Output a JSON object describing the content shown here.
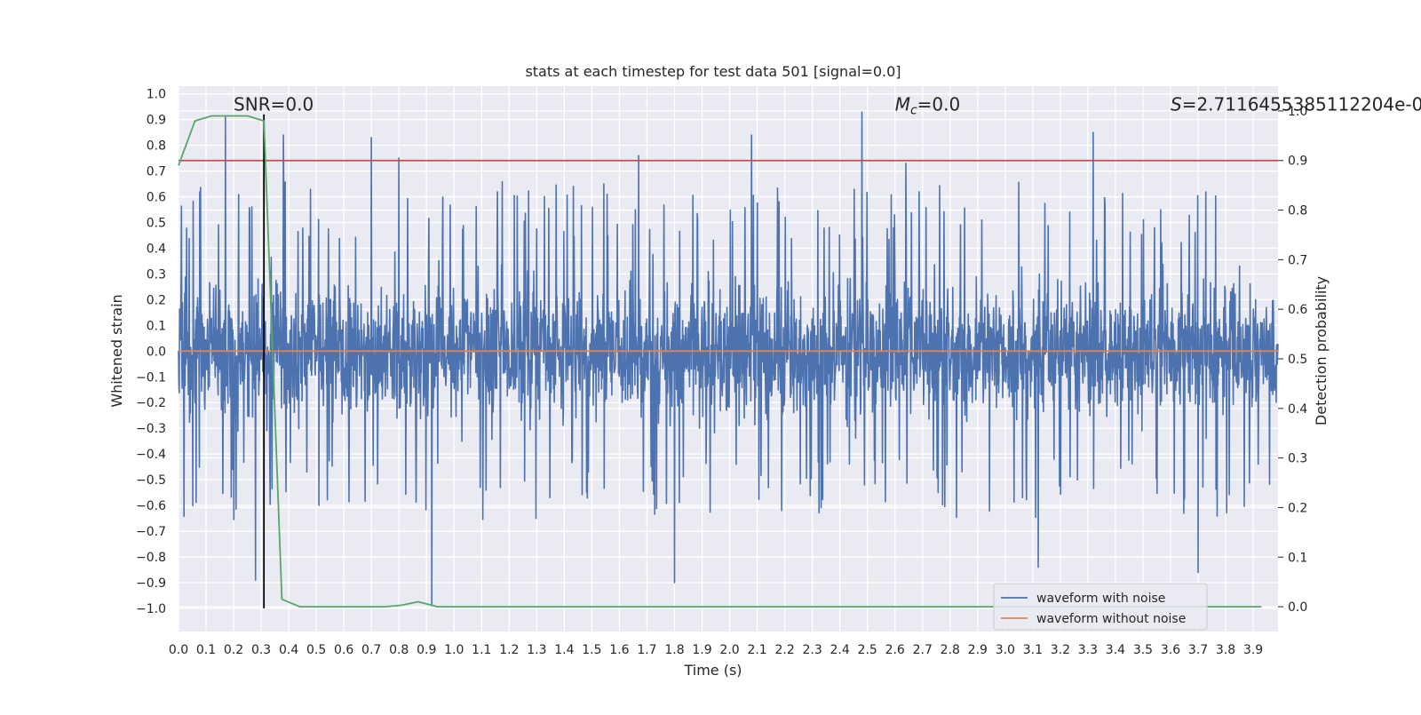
{
  "chart_data": {
    "type": "line",
    "title": "stats at each timestep for test data 501 [signal=0.0]",
    "xlabel": "Time (s)",
    "ylabel": "Whitened strain",
    "y2label": "Detection probability",
    "xlim": [
      0.0,
      3.99
    ],
    "ylim": [
      -1.09,
      1.03
    ],
    "y2lim": [
      -0.05,
      1.05
    ],
    "x_ticks": [
      "0.0",
      "0.1",
      "0.2",
      "0.3",
      "0.4",
      "0.5",
      "0.6",
      "0.7",
      "0.8",
      "0.9",
      "1.0",
      "1.1",
      "1.2",
      "1.3",
      "1.4",
      "1.5",
      "1.6",
      "1.7",
      "1.8",
      "1.9",
      "2.0",
      "2.1",
      "2.2",
      "2.3",
      "2.4",
      "2.5",
      "2.6",
      "2.7",
      "2.8",
      "2.9",
      "3.0",
      "3.1",
      "3.2",
      "3.3",
      "3.4",
      "3.5",
      "3.6",
      "3.7",
      "3.8",
      "3.9"
    ],
    "y_ticks": [
      "1.0",
      "0.9",
      "0.8",
      "0.7",
      "0.6",
      "0.5",
      "0.4",
      "0.3",
      "0.2",
      "0.1",
      "0.0",
      "−0.1",
      "−0.2",
      "−0.3",
      "−0.4",
      "−0.5",
      "−0.6",
      "−0.7",
      "−0.8",
      "−0.9",
      "−1.0"
    ],
    "y2_ticks": [
      "1.0",
      "0.9",
      "0.8",
      "0.7",
      "0.6",
      "0.5",
      "0.4",
      "0.3",
      "0.2",
      "0.1",
      "0.0"
    ],
    "grid": true,
    "legend_position": "lower-right",
    "series": [
      {
        "name": "waveform with noise",
        "color": "#4c72b0",
        "axis": "left",
        "style": "dense noise, mostly between -0.5 and 0.6, spikes to about ±0.9",
        "x_range": [
          0.0,
          3.99
        ],
        "peaks": [
          {
            "x": 0.17,
            "y": 0.91
          },
          {
            "x": 0.38,
            "y": 0.84
          },
          {
            "x": 0.7,
            "y": 0.83
          },
          {
            "x": 0.8,
            "y": 0.75
          },
          {
            "x": 1.67,
            "y": 0.76
          },
          {
            "x": 2.08,
            "y": 0.84
          },
          {
            "x": 2.48,
            "y": 0.93
          },
          {
            "x": 2.64,
            "y": 0.73
          },
          {
            "x": 3.32,
            "y": 0.85
          },
          {
            "x": 0.28,
            "y": -0.89
          },
          {
            "x": 0.92,
            "y": -0.99
          },
          {
            "x": 1.8,
            "y": -0.9
          },
          {
            "x": 3.12,
            "y": -0.84
          },
          {
            "x": 3.7,
            "y": -0.86
          }
        ]
      },
      {
        "name": "waveform without noise",
        "color": "#dd8452",
        "axis": "left",
        "x": [
          0.0,
          3.99
        ],
        "y": [
          0.0,
          0.0
        ]
      },
      {
        "name": "",
        "color": "#55a868",
        "axis": "right",
        "x": [
          0.0,
          0.06,
          0.12,
          0.19,
          0.25,
          0.31,
          0.375,
          0.44,
          0.5,
          0.56,
          0.62,
          0.69,
          0.75,
          0.81,
          0.87,
          0.94,
          1.0,
          1.5,
          2.0,
          2.5,
          3.0,
          3.5,
          3.93
        ],
        "y": [
          0.89,
          0.98,
          0.99,
          0.99,
          0.99,
          0.98,
          0.015,
          0.0,
          0.0,
          0.0,
          0.0,
          0.0,
          0.0,
          0.003,
          0.01,
          0.0,
          0.0,
          0.0,
          0.0,
          0.0,
          0.0,
          0.0,
          0.0
        ]
      }
    ],
    "threshold": {
      "axis": "right",
      "y": 0.9,
      "color": "#c44e52"
    },
    "marker_line": {
      "x": 0.31,
      "y_from": -1.0,
      "y_to": 0.92,
      "color": "#000000"
    },
    "annotations": [
      {
        "text": "SNR=0.0",
        "x": 0.2,
        "y": 0.96
      },
      {
        "text": "=0.0",
        "symbol": "M",
        "subscript": "c",
        "x": 2.6,
        "y": 0.96
      },
      {
        "text": "=2.7116455385112204e-0",
        "symbol": "S",
        "x": 3.6,
        "y": 0.96
      }
    ]
  }
}
